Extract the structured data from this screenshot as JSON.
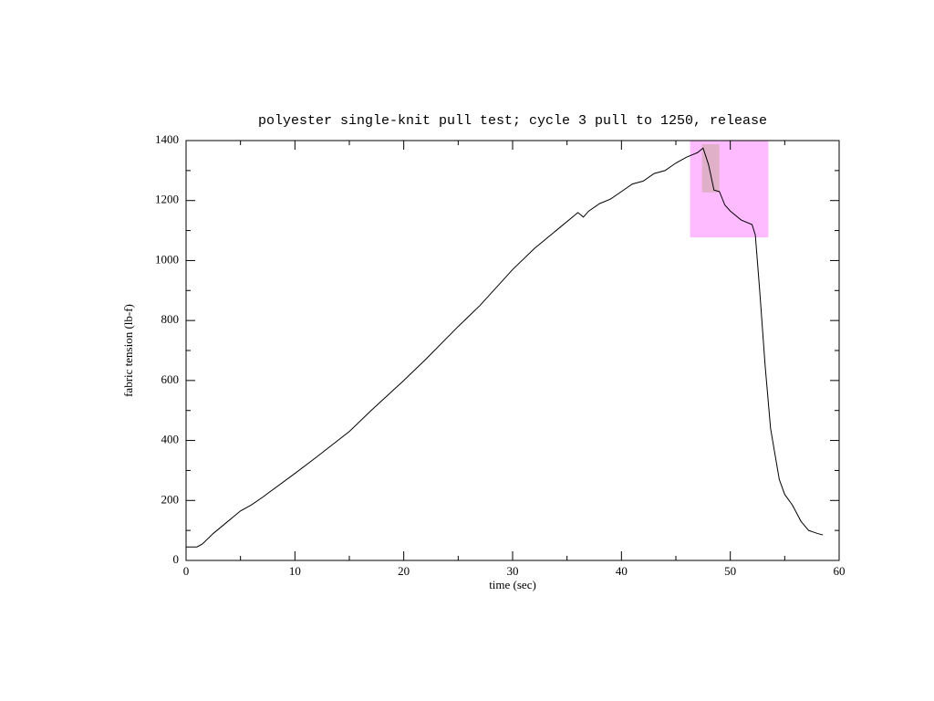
{
  "chart_data": {
    "type": "line",
    "title": "polyester single-knit pull test; cycle 3 pull to 1250, release",
    "x_label": "time (sec)",
    "y_label": "fabric tension (lb-f)",
    "xlim": [
      0,
      60
    ],
    "ylim": [
      0,
      1400
    ],
    "xticks": [
      0,
      10,
      20,
      30,
      40,
      50,
      60
    ],
    "yticks": [
      0,
      200,
      400,
      600,
      800,
      1000,
      1200,
      1400
    ],
    "xminorticks": [
      5,
      15,
      25,
      35,
      45,
      55
    ],
    "yminorticks": [
      100,
      300,
      500,
      700,
      900,
      1100,
      1300
    ],
    "highlights": [
      {
        "xlim": [
          46.3,
          53.5
        ],
        "ylim": [
          1077,
          1400
        ],
        "color": "#ffbbff"
      },
      {
        "xlim": [
          47.4,
          49.0
        ],
        "ylim": [
          1227,
          1388
        ],
        "color": "#e0b0c8"
      }
    ],
    "series": [
      {
        "name": "tension",
        "color": "#000000",
        "x": [
          0,
          1,
          1.5,
          2.5,
          3.5,
          5,
          6,
          7,
          10,
          12,
          15,
          17,
          20,
          22,
          25,
          27,
          30,
          32,
          34,
          36,
          36.5,
          37,
          38,
          39,
          40,
          41,
          42,
          43,
          44,
          45,
          46,
          47,
          47.5,
          48,
          48.5,
          49,
          49.5,
          50,
          51,
          52,
          52.3,
          52.7,
          53.2,
          53.7,
          54.5,
          55,
          55.7,
          56.5,
          57.2,
          58,
          58.5
        ],
        "values": [
          45,
          45,
          55,
          90,
          120,
          165,
          185,
          210,
          290,
          345,
          430,
          500,
          600,
          670,
          780,
          850,
          970,
          1040,
          1100,
          1160,
          1145,
          1165,
          1190,
          1205,
          1230,
          1255,
          1265,
          1290,
          1300,
          1325,
          1345,
          1360,
          1375,
          1320,
          1235,
          1230,
          1185,
          1165,
          1135,
          1120,
          1085,
          900,
          650,
          440,
          270,
          220,
          185,
          130,
          100,
          90,
          85
        ]
      }
    ]
  }
}
